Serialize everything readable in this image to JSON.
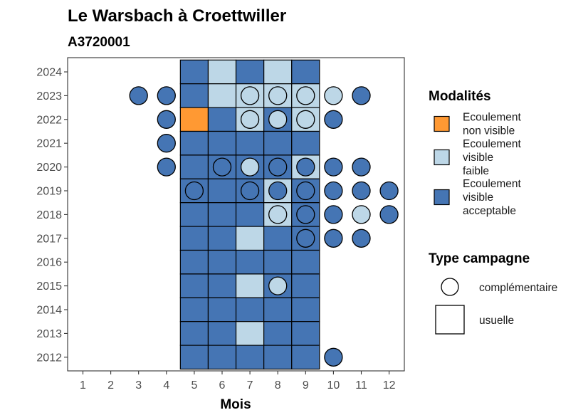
{
  "chart_data": {
    "type": "heatmap",
    "title": "Le Warsbach à Croettwiller",
    "subtitle": "A3720001",
    "xlabel": "Mois",
    "ylabel": "",
    "x_ticks": [
      "1",
      "2",
      "3",
      "4",
      "5",
      "6",
      "7",
      "8",
      "9",
      "10",
      "11",
      "12"
    ],
    "y_ticks": [
      "2012",
      "2013",
      "2014",
      "2015",
      "2016",
      "2017",
      "2018",
      "2019",
      "2020",
      "2021",
      "2022",
      "2023",
      "2024"
    ],
    "grid": false,
    "legend_position": "right",
    "colors": {
      "non_visible": "#ff9933",
      "faible": "#bdd7e7",
      "acceptable": "#4575b4"
    },
    "legend_modalites": {
      "title": "Modalités",
      "items": [
        {
          "key": "non_visible",
          "label_lines": [
            "Ecoulement",
            "non visible"
          ]
        },
        {
          "key": "faible",
          "label_lines": [
            "Ecoulement",
            "visible",
            "faible"
          ]
        },
        {
          "key": "acceptable",
          "label_lines": [
            "Ecoulement",
            "visible",
            "acceptable"
          ]
        }
      ]
    },
    "legend_type": {
      "title": "Type campagne",
      "items": [
        {
          "shape": "circle",
          "label": "complémentaire"
        },
        {
          "shape": "square",
          "label": "usuelle"
        }
      ]
    },
    "usuelle": [
      {
        "year": 2024,
        "values": {
          "5": "acceptable",
          "6": "faible",
          "7": "acceptable",
          "8": "faible",
          "9": "acceptable"
        }
      },
      {
        "year": 2023,
        "values": {
          "5": "acceptable",
          "6": "faible",
          "7": "faible",
          "8": "faible",
          "9": "faible"
        }
      },
      {
        "year": 2022,
        "values": {
          "5": "non_visible",
          "6": "acceptable",
          "7": "faible",
          "8": "acceptable",
          "9": "faible"
        }
      },
      {
        "year": 2021,
        "values": {
          "5": "acceptable",
          "6": "acceptable",
          "7": "acceptable",
          "8": "acceptable",
          "9": "acceptable"
        }
      },
      {
        "year": 2020,
        "values": {
          "5": "acceptable",
          "6": "acceptable",
          "7": "acceptable",
          "8": "acceptable",
          "9": "faible"
        }
      },
      {
        "year": 2019,
        "values": {
          "5": "acceptable",
          "6": "acceptable",
          "7": "acceptable",
          "8": "faible",
          "9": "acceptable"
        }
      },
      {
        "year": 2018,
        "values": {
          "5": "acceptable",
          "6": "acceptable",
          "7": "acceptable",
          "8": "faible",
          "9": "acceptable"
        }
      },
      {
        "year": 2017,
        "values": {
          "5": "acceptable",
          "6": "acceptable",
          "7": "faible",
          "8": "acceptable",
          "9": "acceptable"
        }
      },
      {
        "year": 2016,
        "values": {
          "5": "acceptable",
          "6": "acceptable",
          "7": "acceptable",
          "8": "acceptable",
          "9": "acceptable"
        }
      },
      {
        "year": 2015,
        "values": {
          "5": "acceptable",
          "6": "acceptable",
          "7": "faible",
          "8": "acceptable",
          "9": "acceptable"
        }
      },
      {
        "year": 2014,
        "values": {
          "5": "acceptable",
          "6": "acceptable",
          "7": "acceptable",
          "8": "acceptable",
          "9": "acceptable"
        }
      },
      {
        "year": 2013,
        "values": {
          "5": "acceptable",
          "6": "acceptable",
          "7": "faible",
          "8": "acceptable",
          "9": "acceptable"
        }
      },
      {
        "year": 2012,
        "values": {
          "5": "acceptable",
          "6": "acceptable",
          "7": "acceptable",
          "8": "acceptable",
          "9": "acceptable"
        }
      }
    ],
    "complementaire": [
      {
        "year": 2023,
        "month": 3,
        "value": "acceptable"
      },
      {
        "year": 2023,
        "month": 4,
        "value": "acceptable"
      },
      {
        "year": 2023,
        "month": 7,
        "value": "faible"
      },
      {
        "year": 2023,
        "month": 8,
        "value": "faible"
      },
      {
        "year": 2023,
        "month": 9,
        "value": "faible"
      },
      {
        "year": 2023,
        "month": 10,
        "value": "faible"
      },
      {
        "year": 2023,
        "month": 11,
        "value": "acceptable"
      },
      {
        "year": 2022,
        "month": 4,
        "value": "acceptable"
      },
      {
        "year": 2022,
        "month": 7,
        "value": "faible"
      },
      {
        "year": 2022,
        "month": 8,
        "value": "faible"
      },
      {
        "year": 2022,
        "month": 9,
        "value": "faible"
      },
      {
        "year": 2022,
        "month": 10,
        "value": "acceptable"
      },
      {
        "year": 2021,
        "month": 4,
        "value": "acceptable"
      },
      {
        "year": 2020,
        "month": 4,
        "value": "acceptable"
      },
      {
        "year": 2020,
        "month": 6,
        "value": "acceptable"
      },
      {
        "year": 2020,
        "month": 7,
        "value": "faible"
      },
      {
        "year": 2020,
        "month": 8,
        "value": "acceptable"
      },
      {
        "year": 2020,
        "month": 9,
        "value": "acceptable"
      },
      {
        "year": 2020,
        "month": 10,
        "value": "acceptable"
      },
      {
        "year": 2020,
        "month": 11,
        "value": "acceptable"
      },
      {
        "year": 2019,
        "month": 5,
        "value": "acceptable"
      },
      {
        "year": 2019,
        "month": 7,
        "value": "acceptable"
      },
      {
        "year": 2019,
        "month": 8,
        "value": "acceptable"
      },
      {
        "year": 2019,
        "month": 9,
        "value": "acceptable"
      },
      {
        "year": 2019,
        "month": 10,
        "value": "acceptable"
      },
      {
        "year": 2019,
        "month": 11,
        "value": "acceptable"
      },
      {
        "year": 2019,
        "month": 12,
        "value": "acceptable"
      },
      {
        "year": 2018,
        "month": 8,
        "value": "faible"
      },
      {
        "year": 2018,
        "month": 9,
        "value": "acceptable"
      },
      {
        "year": 2018,
        "month": 10,
        "value": "acceptable"
      },
      {
        "year": 2018,
        "month": 11,
        "value": "faible"
      },
      {
        "year": 2018,
        "month": 12,
        "value": "acceptable"
      },
      {
        "year": 2017,
        "month": 9,
        "value": "acceptable"
      },
      {
        "year": 2017,
        "month": 10,
        "value": "acceptable"
      },
      {
        "year": 2017,
        "month": 11,
        "value": "acceptable"
      },
      {
        "year": 2015,
        "month": 8,
        "value": "faible"
      },
      {
        "year": 2012,
        "month": 10,
        "value": "acceptable"
      }
    ]
  }
}
